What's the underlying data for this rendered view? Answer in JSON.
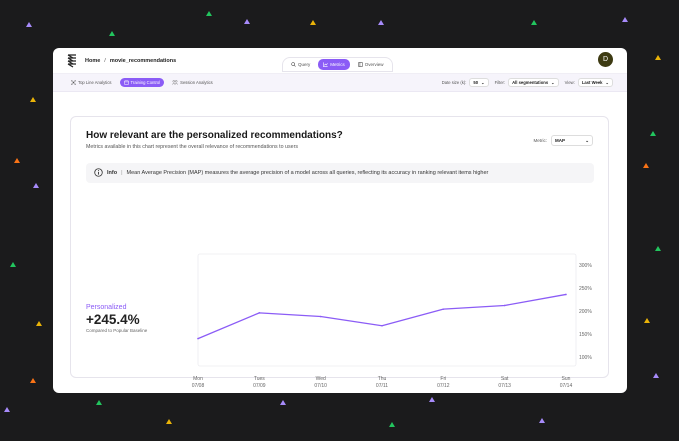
{
  "breadcrumb": {
    "home": "Home",
    "separator": "/",
    "current": "movie_recommendations"
  },
  "tabs": [
    {
      "label": "Query",
      "icon": "search-icon"
    },
    {
      "label": "Metrics",
      "icon": "chart-icon",
      "active": true
    },
    {
      "label": "Overview",
      "icon": "panel-icon"
    }
  ],
  "avatar": {
    "initial": "D"
  },
  "subtabs": [
    {
      "label": "Top Line Analytics",
      "icon": "network-icon"
    },
    {
      "label": "Training Control",
      "icon": "calendar-icon",
      "active": true
    },
    {
      "label": "Session Analytics",
      "icon": "people-icon"
    }
  ],
  "controls": {
    "date_size_label": "Date size (k):",
    "date_size_value": "50",
    "filter_label": "Filter:",
    "filter_value": "All segmentations",
    "view_label": "View:",
    "view_value": "Last Week"
  },
  "card": {
    "title": "How relevant are the personalized recommendations?",
    "subtitle": "Metrics available in this chart represent the overall relevance of recommendations to users",
    "metric_label": "Metric:",
    "metric_value": "MAP",
    "info_label": "Info",
    "info_separator": "|",
    "info_text": "Mean Average Precision (MAP) measures the average precision of a model across all queries, reflecting its accuracy in ranking relevant items higher"
  },
  "summary": {
    "label": "Personalized",
    "value": "+245.4%",
    "caption": "Compared to Popular Baseline"
  },
  "colors": {
    "accent": "#8b5cf6"
  },
  "chart_data": {
    "type": "line",
    "x": [
      [
        "Mon",
        "07/08"
      ],
      [
        "Tues",
        "07/09"
      ],
      [
        "Wed",
        "07/10"
      ],
      [
        "Thu",
        "07/11"
      ],
      [
        "Fri",
        "07/12"
      ],
      [
        "Sat",
        "07/13"
      ],
      [
        "Sun",
        "07/14"
      ]
    ],
    "series": [
      {
        "values": [
          140,
          196,
          188,
          168,
          204,
          212,
          236
        ]
      }
    ],
    "ylim": [
      100,
      300
    ],
    "yticks": [
      "100%",
      "150%",
      "200%",
      "250%",
      "300%"
    ],
    "ytick_values": [
      100,
      150,
      200,
      250,
      300
    ],
    "grid": false
  }
}
